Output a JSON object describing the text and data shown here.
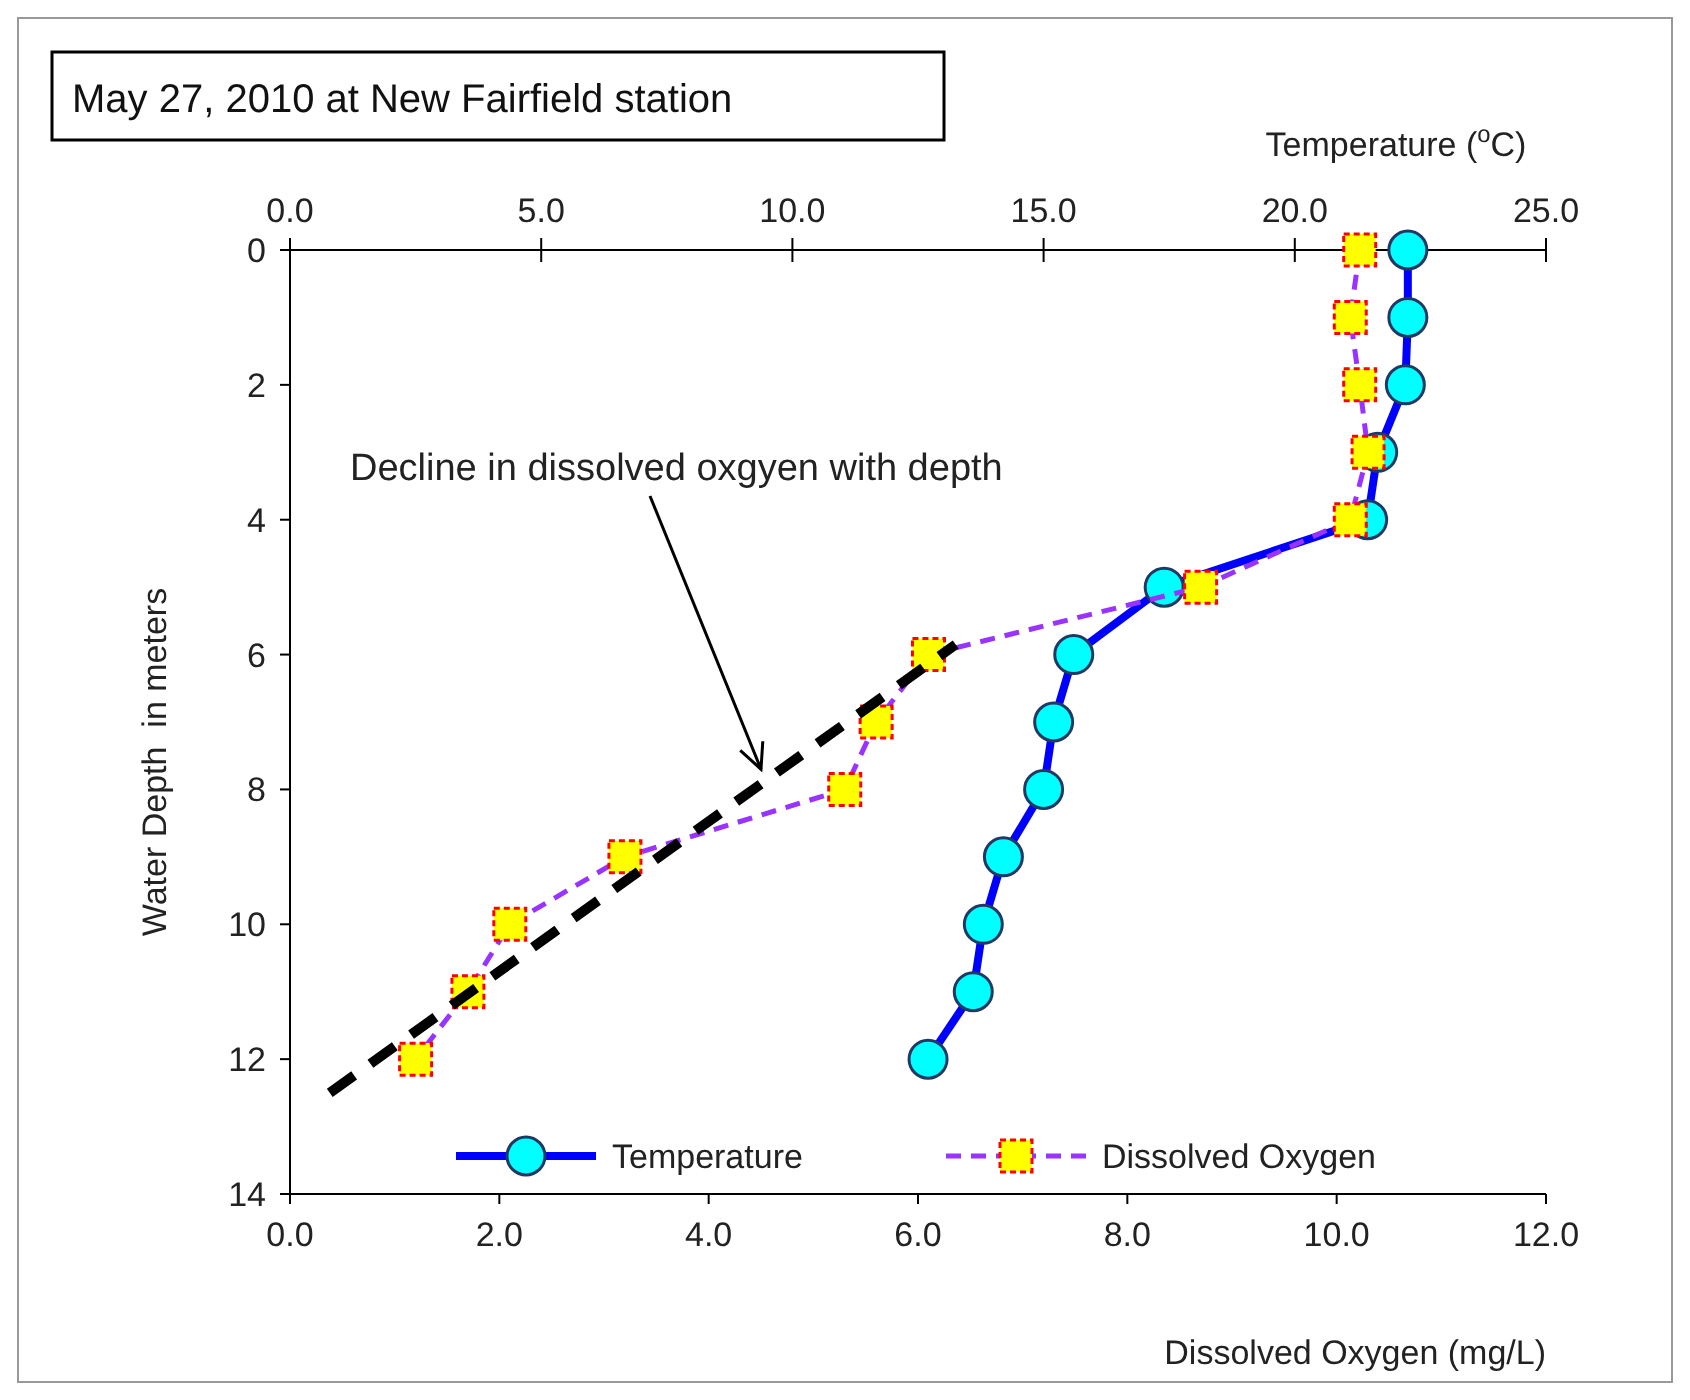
{
  "chart_data": {
    "type": "line",
    "title": "May 27, 2010 at New Fairfield station",
    "xlabel": "Dissolved Oxygen (mg/L)",
    "x2label": "Temperature ($^{o}$C)",
    "ylabel": "Water Depth  in meters",
    "xlim": [
      0,
      12
    ],
    "xticks": [
      {
        "value": 0,
        "label": "0.0"
      },
      {
        "value": 2,
        "label": "2.0"
      },
      {
        "value": 4,
        "label": "4.0"
      },
      {
        "value": 6,
        "label": "6.0"
      },
      {
        "value": 8,
        "label": "8.0"
      },
      {
        "value": 10,
        "label": "10.0"
      },
      {
        "value": 12,
        "label": "12.0"
      }
    ],
    "x2lim": [
      0,
      25
    ],
    "x2ticks": [
      {
        "value": 0,
        "label": "0.0"
      },
      {
        "value": 5,
        "label": "5.0"
      },
      {
        "value": 10,
        "label": "10.0"
      },
      {
        "value": 15,
        "label": "15.0"
      },
      {
        "value": 20,
        "label": "20.0"
      },
      {
        "value": 25,
        "label": "25.0"
      }
    ],
    "ylim": [
      14,
      0
    ],
    "yticks": [
      0,
      2,
      4,
      6,
      8,
      10,
      12,
      14
    ],
    "grid": false,
    "legend": "bottom",
    "series": [
      {
        "name": "Temperature",
        "color": "#0000ff",
        "axis": "x2",
        "marker": "circle",
        "line_style": "solid",
        "x": [
          22.25,
          22.25,
          22.2,
          21.65,
          21.45,
          17.4,
          15.6,
          15.2,
          15.0,
          14.2,
          13.8,
          13.6,
          12.7
        ],
        "values": [
          0,
          1,
          2,
          3,
          4,
          5,
          6,
          7,
          8,
          9,
          10,
          11,
          12
        ]
      },
      {
        "name": "Dissolved Oxygen",
        "color": "#9933ff",
        "marker": "square",
        "line_style": "dashed",
        "x": [
          10.22,
          10.13,
          10.22,
          10.3,
          10.13,
          8.7,
          6.1,
          5.6,
          5.3,
          3.2,
          2.1,
          1.7,
          1.2
        ],
        "values": [
          0,
          1,
          2,
          3,
          4,
          5,
          6,
          7,
          8,
          9,
          10,
          11,
          12
        ]
      },
      {
        "color": "#000000",
        "marker": "none",
        "line_style": "dashed",
        "x": [
          0.38,
          6.36
        ],
        "values": [
          12.5,
          5.85
        ]
      }
    ],
    "annotations": [
      {
        "text": "Decline in dissolved oxgyen with depth",
        "x": 4.5,
        "y": 7.7
      }
    ]
  }
}
